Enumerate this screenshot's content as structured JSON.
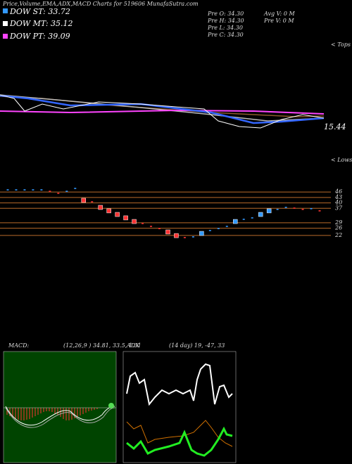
{
  "header": {
    "title": "Price,Volume,EMA,ADX,MACD Charts for 519606  MunafaSutra.com"
  },
  "legend": [
    "DOW ST: 33.72",
    "DOW MT: 35.12",
    "DOW PT: 39.09"
  ],
  "info": [
    "Pre  O: 34.30",
    "Pre  H: 34.30",
    "Pre  L: 34.30",
    "Pre  C: 34.30",
    "Avg V: 0  M",
    "Pre  V: 0  M"
  ],
  "labels": {
    "tops": "< Tops",
    "lows": "< Lows",
    "last": "15.44"
  },
  "chart_data": {
    "type": "candlestick",
    "ylim": [
      20,
      48
    ],
    "yticks": [
      46,
      43,
      40,
      37,
      29,
      26,
      22
    ],
    "closes": [
      47.2,
      47.2,
      47.2,
      47.2,
      47.2,
      46.4,
      45.3,
      46.4,
      48,
      41.4,
      40.6,
      37.5,
      35.6,
      33.6,
      31.7,
      29.7,
      28.6,
      27,
      25.8,
      23.9,
      21.9,
      20.8,
      21.2,
      23.1,
      24.7,
      25.8,
      27,
      29.7,
      30.9,
      31.7,
      33.6,
      35.6,
      36.4,
      37.5,
      37.1,
      36.4,
      36.8,
      35.6
    ]
  },
  "macd": {
    "label": "MACD:",
    "values": "(12,26,9 ) 34.81, 33.5, 1.31"
  },
  "adx": {
    "label": "ADX",
    "values": "(14 day) 19, -47, 33"
  }
}
